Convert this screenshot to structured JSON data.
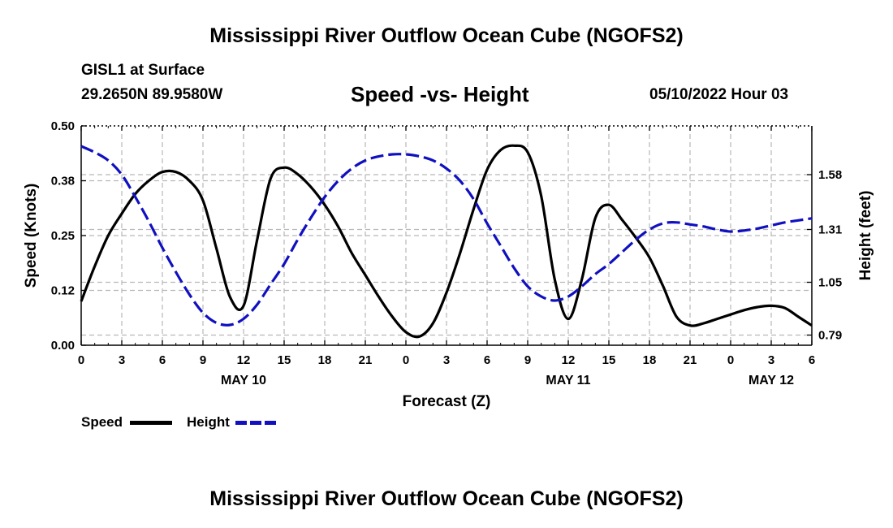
{
  "header": {
    "title": "Mississippi River Outflow Ocean Cube (NGOFS2)",
    "station": "GISL1 at Surface",
    "coords": "29.2650N  89.9580W",
    "subtitle": "Speed -vs- Height",
    "datetime": "05/10/2022 Hour 03"
  },
  "footer": {
    "title": "Mississippi River Outflow Ocean Cube (NGOFS2)"
  },
  "legend": {
    "speed": "Speed",
    "height": "Height"
  },
  "colors": {
    "speed": "#000000",
    "height": "#1010c0",
    "grid": "#b8b8b8"
  },
  "chart_data": {
    "type": "line",
    "xlabel": "Forecast (Z)",
    "ylabel": "Speed (Knots)",
    "y2label": "Height (feet)",
    "xlim": [
      0,
      54
    ],
    "ylim": [
      0,
      0.5
    ],
    "y2lim": [
      0.74,
      1.82
    ],
    "xticks": [
      0,
      3,
      6,
      9,
      12,
      15,
      18,
      21,
      24,
      27,
      30,
      33,
      36,
      39,
      42,
      45,
      48,
      51,
      54
    ],
    "xtick_labels": [
      "0",
      "3",
      "6",
      "9",
      "12",
      "15",
      "18",
      "21",
      "0",
      "3",
      "6",
      "9",
      "12",
      "15",
      "18",
      "21",
      "0",
      "3",
      "6"
    ],
    "day_labels": [
      {
        "label": "MAY 10",
        "x": 12
      },
      {
        "label": "MAY 11",
        "x": 36
      },
      {
        "label": "MAY 12",
        "x": 51
      }
    ],
    "yticks": [
      0,
      0.125,
      0.25,
      0.375,
      0.5
    ],
    "ytick_labels": [
      "0.00",
      "0.12",
      "0.25",
      "0.38",
      "0.50"
    ],
    "y2ticks": [
      0.79,
      1.05,
      1.31,
      1.58
    ],
    "y2tick_labels": [
      "0.79",
      "1.05",
      "1.31",
      "1.58"
    ],
    "series": [
      {
        "name": "Speed",
        "axis": "left",
        "style": "solid",
        "x": [
          0,
          1,
          2,
          3,
          4,
          5,
          6,
          7,
          8,
          9,
          10,
          11,
          12,
          13,
          14,
          15,
          16,
          17,
          18,
          19,
          20,
          21,
          22,
          23,
          24,
          25,
          26,
          27,
          28,
          29,
          30,
          31,
          32,
          33,
          34,
          35,
          36,
          37,
          38,
          39,
          40,
          41,
          42,
          43,
          44,
          45,
          46,
          47,
          48,
          49,
          50,
          51,
          52,
          53,
          54
        ],
        "values": [
          0.1,
          0.18,
          0.25,
          0.3,
          0.345,
          0.375,
          0.395,
          0.395,
          0.375,
          0.33,
          0.22,
          0.11,
          0.09,
          0.24,
          0.38,
          0.405,
          0.39,
          0.36,
          0.32,
          0.27,
          0.21,
          0.16,
          0.11,
          0.065,
          0.03,
          0.02,
          0.05,
          0.12,
          0.21,
          0.31,
          0.4,
          0.445,
          0.455,
          0.44,
          0.34,
          0.15,
          0.06,
          0.15,
          0.29,
          0.32,
          0.285,
          0.245,
          0.2,
          0.135,
          0.065,
          0.045,
          0.05,
          0.06,
          0.07,
          0.08,
          0.087,
          0.09,
          0.085,
          0.065,
          0.045
        ]
      },
      {
        "name": "Height",
        "axis": "right",
        "style": "dashed",
        "x": [
          0,
          1,
          2,
          3,
          4,
          5,
          6,
          7,
          8,
          9,
          10,
          11,
          12,
          13,
          14,
          15,
          16,
          17,
          18,
          19,
          20,
          21,
          22,
          23,
          24,
          25,
          26,
          27,
          28,
          29,
          30,
          31,
          32,
          33,
          34,
          35,
          36,
          37,
          38,
          39,
          40,
          41,
          42,
          43,
          44,
          45,
          46,
          47,
          48,
          49,
          50,
          51,
          52,
          53,
          54
        ],
        "values": [
          1.72,
          1.69,
          1.65,
          1.58,
          1.47,
          1.35,
          1.22,
          1.1,
          0.99,
          0.9,
          0.85,
          0.84,
          0.87,
          0.94,
          1.04,
          1.14,
          1.26,
          1.37,
          1.47,
          1.55,
          1.61,
          1.65,
          1.67,
          1.68,
          1.68,
          1.67,
          1.65,
          1.61,
          1.55,
          1.46,
          1.34,
          1.23,
          1.12,
          1.03,
          0.98,
          0.96,
          0.98,
          1.03,
          1.09,
          1.14,
          1.2,
          1.26,
          1.31,
          1.34,
          1.345,
          1.335,
          1.325,
          1.31,
          1.3,
          1.305,
          1.315,
          1.33,
          1.345,
          1.355,
          1.365
        ]
      }
    ]
  }
}
